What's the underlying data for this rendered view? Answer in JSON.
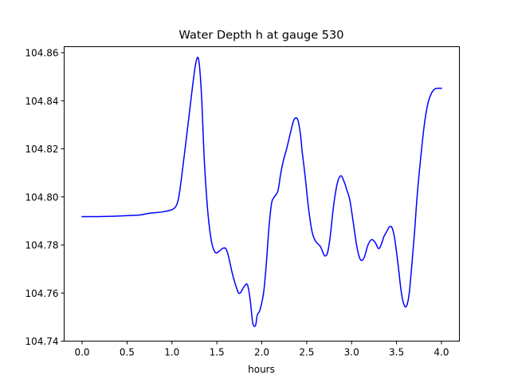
{
  "chart_data": {
    "type": "line",
    "title": "Water Depth h at gauge 530",
    "xlabel": "hours",
    "ylabel": "",
    "xlim": [
      -0.2,
      4.2
    ],
    "ylim": [
      104.74,
      104.8625
    ],
    "x_ticks": [
      0.0,
      0.5,
      1.0,
      1.5,
      2.0,
      2.5,
      3.0,
      3.5,
      4.0
    ],
    "x_tick_labels": [
      "0.0",
      "0.5",
      "1.0",
      "1.5",
      "2.0",
      "2.5",
      "3.0",
      "3.5",
      "4.0"
    ],
    "y_ticks": [
      104.74,
      104.76,
      104.78,
      104.8,
      104.82,
      104.84,
      104.86
    ],
    "y_tick_labels": [
      "104.74",
      "104.76",
      "104.78",
      "104.80",
      "104.82",
      "104.84",
      "104.86"
    ],
    "grid": false,
    "series": [
      {
        "color": "#0000ff",
        "x": [
          0.0,
          0.1,
          0.3,
          0.5,
          0.65,
          0.75,
          0.9,
          1.0,
          1.05,
          1.08,
          1.12,
          1.18,
          1.23,
          1.27,
          1.3,
          1.33,
          1.36,
          1.4,
          1.44,
          1.48,
          1.52,
          1.56,
          1.6,
          1.63,
          1.67,
          1.71,
          1.75,
          1.8,
          1.84,
          1.87,
          1.9,
          1.93,
          1.95,
          1.98,
          2.02,
          2.05,
          2.08,
          2.11,
          2.14,
          2.18,
          2.21,
          2.24,
          2.28,
          2.32,
          2.36,
          2.4,
          2.43,
          2.45,
          2.48,
          2.52,
          2.56,
          2.6,
          2.65,
          2.68,
          2.7,
          2.73,
          2.76,
          2.8,
          2.84,
          2.88,
          2.92,
          2.95,
          2.98,
          3.02,
          3.06,
          3.1,
          3.14,
          3.18,
          3.22,
          3.26,
          3.3,
          3.33,
          3.36,
          3.39,
          3.42,
          3.45,
          3.48,
          3.52,
          3.55,
          3.58,
          3.61,
          3.64,
          3.67,
          3.7,
          3.73,
          3.77,
          3.81,
          3.85,
          3.89,
          3.93,
          3.97,
          4.0
        ],
        "y": [
          104.7918,
          104.7918,
          104.7919,
          104.7922,
          104.7925,
          104.7932,
          104.7938,
          104.7947,
          104.7965,
          104.8008,
          104.812,
          104.8305,
          104.8462,
          104.8565,
          104.8565,
          104.8418,
          104.8155,
          104.7935,
          104.7815,
          104.777,
          104.7772,
          104.7785,
          104.7785,
          104.7752,
          104.7685,
          104.7632,
          104.7598,
          104.7625,
          104.7635,
          104.7575,
          104.7475,
          104.7465,
          104.7508,
          104.753,
          104.76,
          104.772,
          104.7872,
          104.7975,
          104.8,
          104.8025,
          104.8095,
          104.815,
          104.8205,
          104.8268,
          104.8322,
          104.8322,
          104.8262,
          104.8188,
          104.8095,
          104.7955,
          104.7855,
          104.7815,
          104.7795,
          104.777,
          104.7755,
          104.7765,
          104.783,
          104.7965,
          104.8055,
          104.8088,
          104.806,
          104.8025,
          104.7988,
          104.789,
          104.779,
          104.7738,
          104.7748,
          104.7798,
          104.7822,
          104.7812,
          104.7785,
          104.7802,
          104.7835,
          104.7855,
          104.7875,
          104.7872,
          104.7825,
          104.771,
          104.7612,
          104.7555,
          104.7545,
          104.7595,
          104.7715,
          104.785,
          104.8005,
          104.8165,
          104.8302,
          104.839,
          104.8432,
          104.845,
          104.8452,
          104.8452
        ]
      }
    ]
  }
}
